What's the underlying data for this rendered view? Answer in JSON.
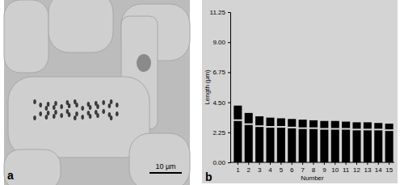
{
  "chart_data": {
    "type": "bar",
    "stacked": true,
    "x_label": "Number",
    "y_label": "Length (µm)",
    "categories": [
      "1",
      "2",
      "3",
      "4",
      "5",
      "6",
      "7",
      "8",
      "9",
      "10",
      "11",
      "12",
      "13",
      "14",
      "15"
    ],
    "series": [
      {
        "color": "#000000",
        "values": [
          3.1,
          2.8,
          2.65,
          2.6,
          2.6,
          2.55,
          2.5,
          2.5,
          2.45,
          2.45,
          2.45,
          2.4,
          2.4,
          2.4,
          2.35
        ]
      },
      {
        "color": "#000000",
        "values": [
          1.15,
          0.9,
          0.8,
          0.75,
          0.7,
          0.7,
          0.7,
          0.65,
          0.65,
          0.65,
          0.6,
          0.6,
          0.6,
          0.55,
          0.55
        ]
      }
    ],
    "ylim": [
      0,
      11.25
    ],
    "yticks": [
      {
        "value": 0,
        "label": "0.00"
      },
      {
        "value": 2.25,
        "label": "2.25"
      },
      {
        "value": 4.5,
        "label": "4.50"
      },
      {
        "value": 6.75,
        "label": "6.75"
      },
      {
        "value": 9,
        "label": "9.00"
      },
      {
        "value": 11.25,
        "label": "11.25"
      }
    ],
    "grid": false
  },
  "panel_labels": [
    "a",
    "b"
  ],
  "micrograph": {
    "scale_bar": "10 µm"
  }
}
